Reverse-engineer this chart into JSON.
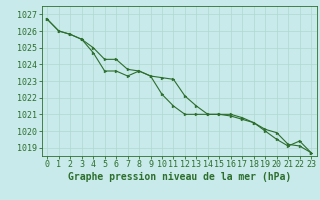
{
  "title": "Graphe pression niveau de la mer (hPa)",
  "bg_color": "#c8eaea",
  "grid_color": "#b0d8d0",
  "line_color": "#2d6e2d",
  "marker_color": "#2d6e2d",
  "xlim": [
    -0.5,
    23.5
  ],
  "ylim": [
    1018.5,
    1027.5
  ],
  "yticks": [
    1019,
    1020,
    1021,
    1022,
    1023,
    1024,
    1025,
    1026,
    1027
  ],
  "xticks": [
    0,
    1,
    2,
    3,
    4,
    5,
    6,
    7,
    8,
    9,
    10,
    11,
    12,
    13,
    14,
    15,
    16,
    17,
    18,
    19,
    20,
    21,
    22,
    23
  ],
  "series1": [
    1026.7,
    1026.0,
    1025.8,
    1025.5,
    1024.7,
    1023.6,
    1023.6,
    1023.3,
    1023.6,
    1023.3,
    1022.2,
    1021.5,
    1021.0,
    1021.0,
    1021.0,
    1021.0,
    1020.9,
    1020.7,
    1020.5,
    1020.0,
    1019.5,
    1019.1,
    1019.4,
    1018.7
  ],
  "series2": [
    1026.7,
    1026.0,
    1025.8,
    1025.5,
    1025.0,
    1024.3,
    1024.3,
    1023.7,
    1023.6,
    1023.3,
    1023.2,
    1023.1,
    1022.1,
    1021.5,
    1021.0,
    1021.0,
    1021.0,
    1020.8,
    1020.5,
    1020.1,
    1019.9,
    1019.2,
    1019.1,
    1018.7
  ],
  "title_fontsize": 7,
  "tick_fontsize": 6
}
